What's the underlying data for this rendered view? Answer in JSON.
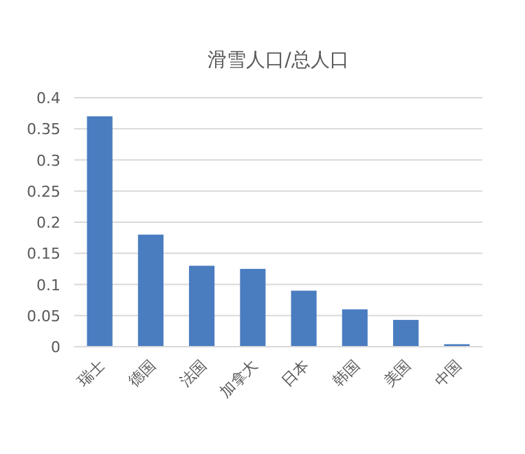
{
  "chart_data": {
    "type": "bar",
    "title": "滑雪人口/总人口",
    "categories": [
      "瑞士",
      "德国",
      "法国",
      "加拿大",
      "日本",
      "韩国",
      "美国",
      "中国"
    ],
    "values": [
      0.37,
      0.18,
      0.13,
      0.125,
      0.09,
      0.06,
      0.043,
      0.004
    ],
    "color": "#4a7cc0",
    "ylim": [
      0,
      0.4
    ],
    "yticks": [
      0,
      0.05,
      0.1,
      0.15,
      0.2,
      0.25,
      0.3,
      0.35,
      0.4
    ],
    "grid": "y"
  }
}
